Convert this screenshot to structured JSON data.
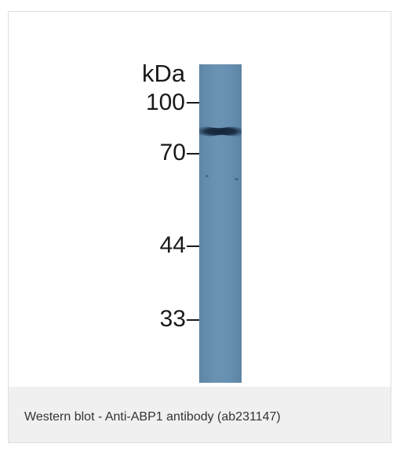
{
  "figure": {
    "unit_label": "kDa",
    "markers": [
      {
        "label": "100"
      },
      {
        "label": "70"
      },
      {
        "label": "44"
      },
      {
        "label": "33"
      }
    ],
    "caption": "Western blot - Anti-ABP1 antibody (ab231147)",
    "colors": {
      "membrane": "#6690b1",
      "band": "#1c2f44",
      "caption_background": "#f0f0f0",
      "frame_border": "#dddddd"
    }
  }
}
